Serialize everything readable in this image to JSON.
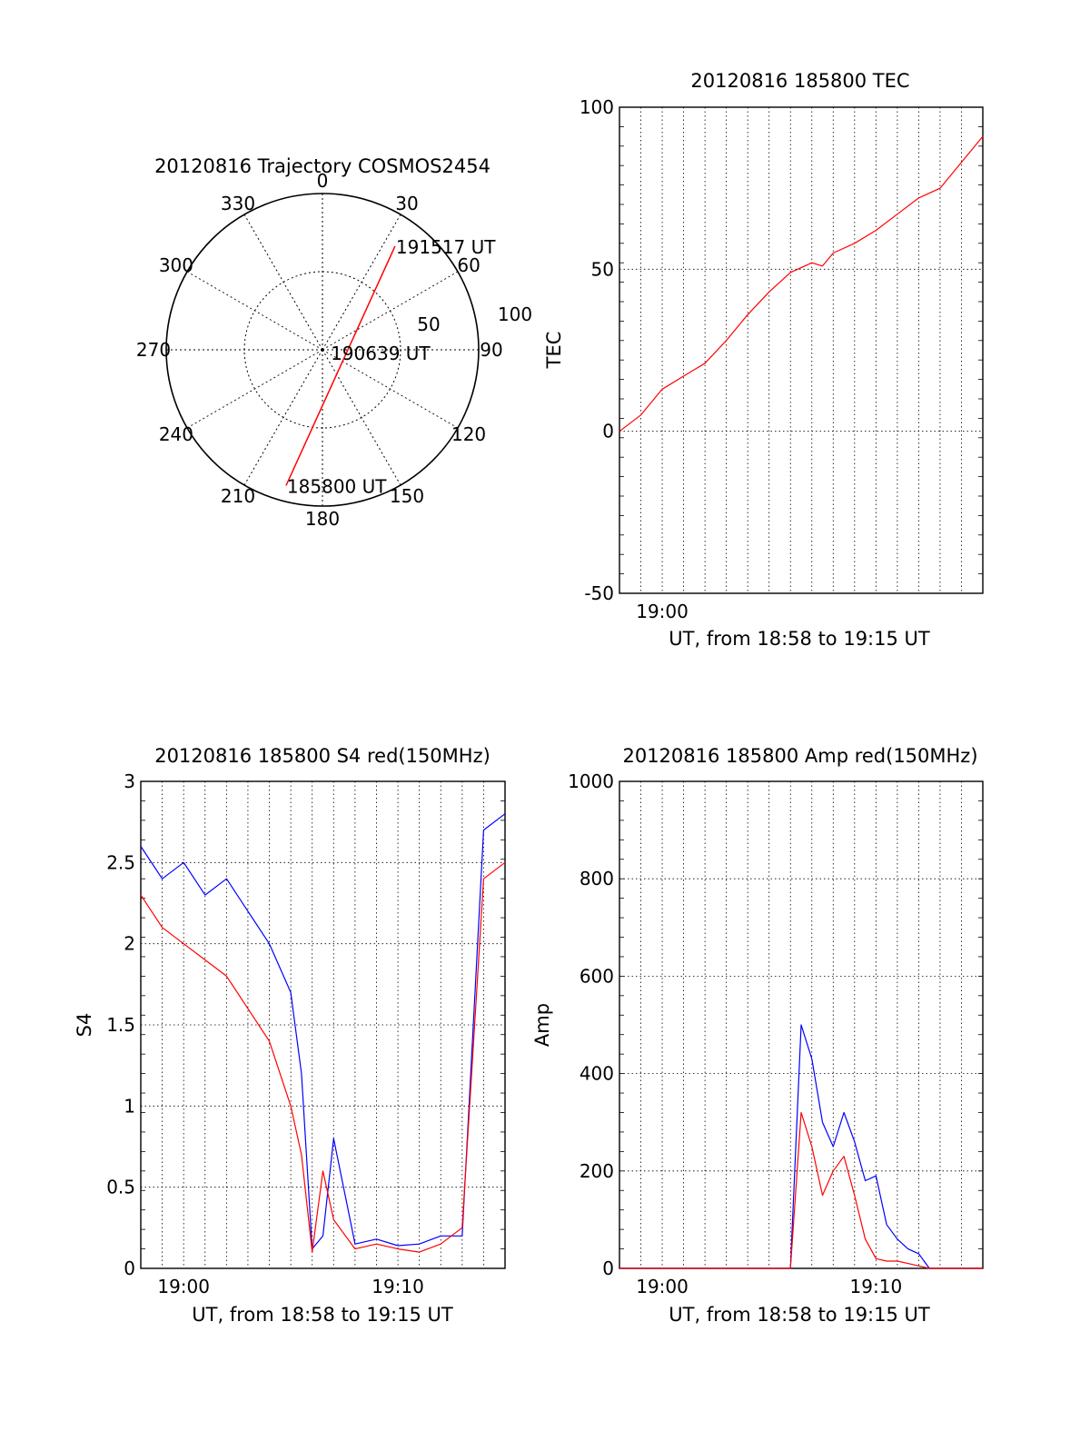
{
  "chart_data": [
    {
      "type": "polar",
      "title": "20120816 Trajectory COSMOS2454",
      "angle_ticks": [
        "0",
        "30",
        "60",
        "90",
        "120",
        "150",
        "180",
        "210",
        "240",
        "270",
        "300",
        "330"
      ],
      "radial_ticks": [
        "50",
        "100"
      ],
      "rlim": [
        0,
        100
      ],
      "grid": true,
      "series": [
        {
          "color": "#ff0000",
          "points": [
            {
              "az": 195,
              "r": 90
            },
            {
              "az": 35,
              "r": 81
            }
          ]
        }
      ],
      "annotations": [
        {
          "text": "191517 UT",
          "az": 35,
          "r": 81
        },
        {
          "text": "190639 UT",
          "az": 110,
          "r": 5
        },
        {
          "text": "185800 UT",
          "az": 195,
          "r": 90
        }
      ]
    },
    {
      "type": "line",
      "title": "20120816 185800 TEC",
      "xlabel": "UT, from 18:58 to 19:15 UT",
      "ylabel": "TEC",
      "xlim": [
        "18:58",
        "19:15"
      ],
      "ylim": [
        -50,
        100
      ],
      "yticks": [
        "100",
        "50",
        "0",
        "-50"
      ],
      "xticks": [
        "19:00"
      ],
      "grid": true,
      "series": [
        {
          "color": "#ff0000",
          "x": [
            "18:58:00",
            "18:59:00",
            "19:00:00",
            "19:01:00",
            "19:02:00",
            "19:03:00",
            "19:04:00",
            "19:05:00",
            "19:06:00",
            "19:07:00",
            "19:07:30",
            "19:08:00",
            "19:09:00",
            "19:10:00",
            "19:11:00",
            "19:12:00",
            "19:13:00",
            "19:14:00",
            "19:15:00"
          ],
          "y": [
            0,
            5,
            13,
            17,
            21,
            28,
            36,
            43,
            49,
            52,
            51,
            55,
            58,
            62,
            67,
            72,
            75,
            83,
            91
          ]
        }
      ]
    },
    {
      "type": "line",
      "title": "20120816 185800 S4 red(150MHz)",
      "xlabel": "UT, from 18:58 to 19:15 UT",
      "ylabel": "S4",
      "xlim": [
        "18:58",
        "19:15"
      ],
      "ylim": [
        0,
        3
      ],
      "yticks": [
        "3",
        "2.5",
        "2",
        "1.5",
        "1",
        "0.5",
        "0"
      ],
      "xticks": [
        "19:00",
        "19:10"
      ],
      "grid": true,
      "series": [
        {
          "color": "#0000ff",
          "x": [
            "18:58:00",
            "18:59:00",
            "19:00:00",
            "19:01:00",
            "19:02:00",
            "19:03:00",
            "19:04:00",
            "19:05:00",
            "19:05:30",
            "19:06:00",
            "19:06:30",
            "19:07:00",
            "19:08:00",
            "19:09:00",
            "19:10:00",
            "19:11:00",
            "19:12:00",
            "19:13:00",
            "19:14:00",
            "19:15:00"
          ],
          "y": [
            2.6,
            2.4,
            2.5,
            2.3,
            2.4,
            2.2,
            2.0,
            1.7,
            1.2,
            0.12,
            0.2,
            0.8,
            0.15,
            0.18,
            0.14,
            0.15,
            0.2,
            0.2,
            2.7,
            2.8
          ]
        },
        {
          "color": "#ff0000",
          "x": [
            "18:58:00",
            "18:59:00",
            "19:00:00",
            "19:01:00",
            "19:02:00",
            "19:03:00",
            "19:04:00",
            "19:05:00",
            "19:05:30",
            "19:06:00",
            "19:06:30",
            "19:07:00",
            "19:08:00",
            "19:09:00",
            "19:10:00",
            "19:11:00",
            "19:12:00",
            "19:13:00",
            "19:14:00",
            "19:15:00"
          ],
          "y": [
            2.3,
            2.1,
            2.0,
            1.9,
            1.8,
            1.6,
            1.4,
            1.0,
            0.7,
            0.1,
            0.6,
            0.3,
            0.12,
            0.15,
            0.12,
            0.1,
            0.15,
            0.25,
            2.4,
            2.5
          ]
        }
      ]
    },
    {
      "type": "line",
      "title": "20120816 185800 Amp red(150MHz)",
      "xlabel": "UT, from 18:58 to 19:15 UT",
      "ylabel": "Amp",
      "xlim": [
        "18:58",
        "19:15"
      ],
      "ylim": [
        0,
        1000
      ],
      "yticks": [
        "1000",
        "800",
        "600",
        "400",
        "200",
        "0"
      ],
      "xticks": [
        "19:00",
        "19:10"
      ],
      "grid": true,
      "series": [
        {
          "color": "#0000ff",
          "x": [
            "18:58:00",
            "19:05:30",
            "19:06:00",
            "19:06:30",
            "19:07:00",
            "19:07:30",
            "19:08:00",
            "19:08:30",
            "19:09:00",
            "19:09:30",
            "19:10:00",
            "19:10:30",
            "19:11:00",
            "19:11:30",
            "19:12:00",
            "19:12:30",
            "19:15:00"
          ],
          "y": [
            0,
            0,
            0,
            500,
            430,
            300,
            250,
            320,
            260,
            180,
            190,
            90,
            60,
            40,
            30,
            0,
            0
          ]
        },
        {
          "color": "#ff0000",
          "x": [
            "18:58:00",
            "19:05:30",
            "19:06:00",
            "19:06:30",
            "19:07:00",
            "19:07:30",
            "19:08:00",
            "19:08:30",
            "19:09:00",
            "19:09:30",
            "19:10:00",
            "19:10:30",
            "19:11:00",
            "19:11:30",
            "19:12:00",
            "19:12:30",
            "19:15:00"
          ],
          "y": [
            0,
            0,
            0,
            320,
            250,
            150,
            200,
            230,
            150,
            60,
            20,
            15,
            15,
            10,
            5,
            0,
            0
          ]
        }
      ]
    }
  ]
}
